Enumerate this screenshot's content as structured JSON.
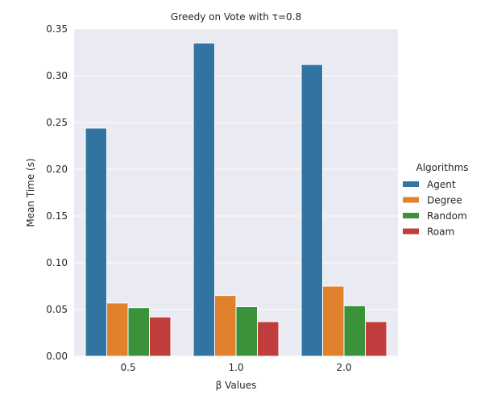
{
  "chart_data": {
    "type": "bar",
    "title": "Greedy on Vote with τ=0.8",
    "xlabel": "β Values",
    "ylabel": "Mean Time (s)",
    "categories": [
      "0.5",
      "1.0",
      "2.0"
    ],
    "ylim": [
      0,
      0.35
    ],
    "yticks": [
      "0.00",
      "0.05",
      "0.10",
      "0.15",
      "0.20",
      "0.25",
      "0.30",
      "0.35"
    ],
    "grid": true,
    "legend": {
      "title": "Algorithms",
      "placement": "right"
    },
    "series": [
      {
        "name": "Agent",
        "color": "#3274a1",
        "values": [
          0.244,
          0.335,
          0.312
        ]
      },
      {
        "name": "Degree",
        "color": "#e1812c",
        "values": [
          0.057,
          0.065,
          0.075
        ]
      },
      {
        "name": "Random",
        "color": "#3a923a",
        "values": [
          0.052,
          0.053,
          0.054
        ]
      },
      {
        "name": "Roam",
        "color": "#c03d3e",
        "values": [
          0.042,
          0.037,
          0.037
        ]
      }
    ],
    "background": "#eaeaf2",
    "gridline_color": "#ffffff"
  }
}
